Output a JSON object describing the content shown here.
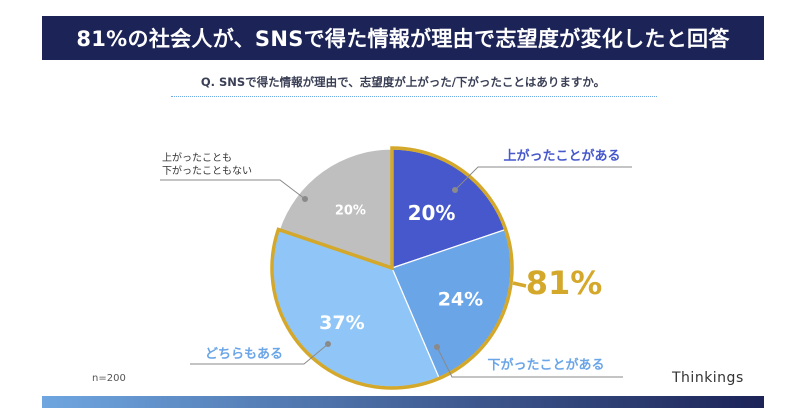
{
  "banner": {
    "title": "81%の社会人が、SNSで得た情報が理由で志望度が変化したと回答"
  },
  "question": "Q. SNSで得た情報が理由で、志望度が上がった/下がったことはありますか。",
  "sample_size": "n=200",
  "brand": "Thinkings",
  "highlight": {
    "value": "81%",
    "color": "#d4a82a"
  },
  "chart_data": {
    "type": "pie",
    "title": "",
    "categories": [
      "上がったことがある",
      "下がったことがある",
      "どちらもある",
      "上がったことも下がったこともない"
    ],
    "values": [
      20,
      24,
      37,
      20
    ],
    "value_labels": [
      "20%",
      "24%",
      "37%",
      "20%"
    ],
    "colors": [
      "#4658cb",
      "#6aa5e8",
      "#8fc6f7",
      "#bfbfbf"
    ],
    "label_colors": [
      "#4658cb",
      "#6aa5e8",
      "#6aa5e8",
      "#333333"
    ],
    "highlight_group": [
      0,
      1,
      2
    ],
    "legend": "none"
  }
}
